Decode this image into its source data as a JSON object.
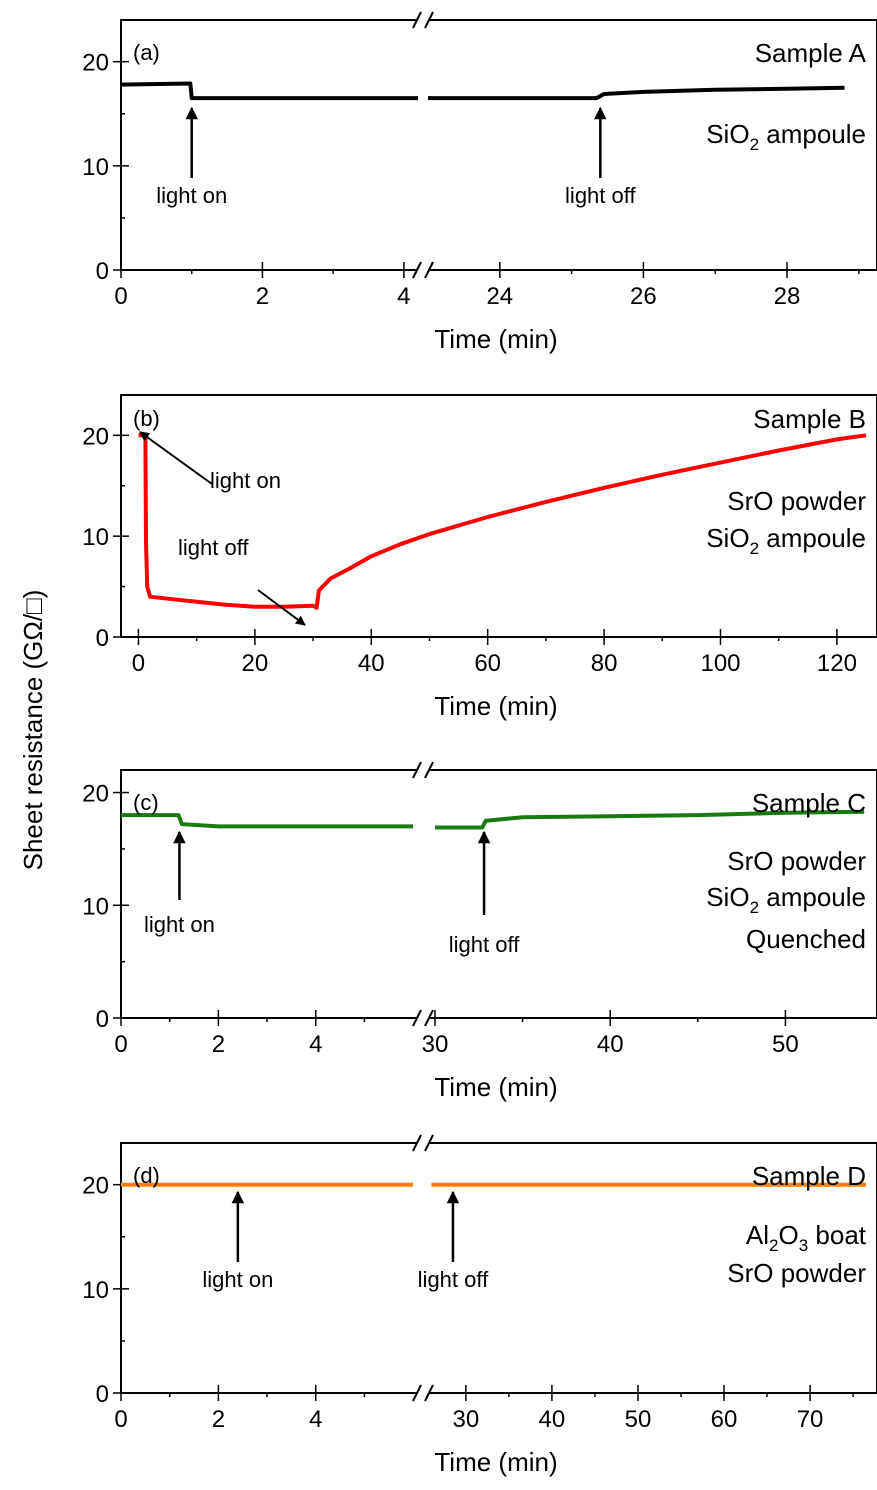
{
  "ylabel": "Sheet resistance (GΩ/□)",
  "chart_data": [
    {
      "type": "line",
      "panel": "(a)",
      "sample": "Sample A",
      "notes": [
        {
          "text": "SiO",
          "sub": "2",
          "rest": " ampoule"
        }
      ],
      "xlabel": "Time (min)",
      "ylim": [
        0,
        24
      ],
      "yticks": [
        "0",
        "10",
        "20"
      ],
      "broken_axis": true,
      "segments": [
        {
          "xlim": [
            0,
            4.2
          ],
          "xticks": [
            0,
            2,
            4
          ]
        },
        {
          "xlim": [
            23,
            29.1
          ],
          "xticks": [
            24,
            26,
            28
          ]
        }
      ],
      "color": "#000000",
      "series": [
        {
          "segment": 0,
          "x": [
            0,
            0.98,
            1.0,
            4.2
          ],
          "y": [
            17.8,
            17.9,
            16.5,
            16.5
          ]
        },
        {
          "segment": 1,
          "x": [
            23,
            25.35,
            25.45,
            26,
            27,
            28,
            28.8
          ],
          "y": [
            16.5,
            16.5,
            16.9,
            17.1,
            17.3,
            17.4,
            17.5
          ]
        }
      ],
      "annotations": [
        {
          "text": "light on",
          "segment": 0,
          "x": 1.0
        },
        {
          "text": "light off",
          "segment": 1,
          "x": 25.4
        }
      ]
    },
    {
      "type": "line",
      "panel": "(b)",
      "sample": "Sample B",
      "notes": [
        {
          "text": "SrO powder"
        },
        {
          "text": "SiO",
          "sub": "2",
          "rest": " ampoule"
        }
      ],
      "xlabel": "Time (min)",
      "ylim": [
        0,
        24
      ],
      "yticks": [
        "0",
        "10",
        "20"
      ],
      "broken_axis": false,
      "segments": [
        {
          "xlim": [
            -3,
            125
          ],
          "xticks": [
            0,
            20,
            40,
            60,
            80,
            100,
            120
          ]
        }
      ],
      "color": "#ff0000",
      "series": [
        {
          "segment": 0,
          "x": [
            0,
            1.2,
            1.3,
            1.5,
            2,
            5,
            10,
            15,
            20,
            25,
            30,
            30.6,
            31,
            33,
            36,
            40,
            45,
            50,
            60,
            70,
            80,
            90,
            100,
            110,
            120,
            125
          ],
          "y": [
            20,
            20,
            9.5,
            5.0,
            4.0,
            3.8,
            3.5,
            3.2,
            3.0,
            3.0,
            3.1,
            2.9,
            4.6,
            5.8,
            6.7,
            8.0,
            9.2,
            10.2,
            11.9,
            13.4,
            14.8,
            16.1,
            17.3,
            18.5,
            19.6,
            20.0
          ]
        }
      ],
      "annotations": [
        {
          "text": "light on",
          "segment": 0,
          "x": 1,
          "y": 20
        },
        {
          "text": "light off",
          "segment": 0,
          "x": 30.5,
          "y": 3.2
        }
      ]
    },
    {
      "type": "line",
      "panel": "(c)",
      "sample": "Sample C",
      "notes": [
        {
          "text": "SrO powder"
        },
        {
          "text": "SiO",
          "sub": "2",
          "rest": " ampoule"
        },
        {
          "text": "Quenched"
        }
      ],
      "xlabel": "Time (min)",
      "ylim": [
        0,
        22
      ],
      "yticks": [
        "0",
        "10",
        "20"
      ],
      "broken_axis": true,
      "segments": [
        {
          "xlim": [
            0,
            6.1
          ],
          "xticks": [
            0,
            2,
            4
          ]
        },
        {
          "xlim": [
            29.6,
            54.6
          ],
          "xticks": [
            30,
            40,
            50
          ]
        }
      ],
      "color": "#1a7a12",
      "series": [
        {
          "segment": 0,
          "x": [
            0,
            1.18,
            1.25,
            2,
            3,
            4,
            5,
            6.0
          ],
          "y": [
            18.0,
            18.0,
            17.2,
            17.0,
            17.0,
            17.0,
            17.0,
            17.0
          ]
        },
        {
          "segment": 1,
          "x": [
            30,
            32.7,
            32.9,
            35,
            40,
            45,
            50,
            54.5
          ],
          "y": [
            16.9,
            16.9,
            17.5,
            17.8,
            17.9,
            18.0,
            18.2,
            18.3
          ]
        }
      ],
      "annotations": [
        {
          "text": "light on",
          "segment": 0,
          "x": 1.2
        },
        {
          "text": "light off",
          "segment": 1,
          "x": 32.8
        }
      ]
    },
    {
      "type": "line",
      "panel": "(d)",
      "sample": "Sample D",
      "notes": [
        {
          "text": "Al",
          "sub": "2",
          "rest": "O",
          "sub2": "3",
          "rest2": " boat"
        },
        {
          "text": "SrO powder"
        }
      ],
      "xlabel": "Time (min)",
      "ylim": [
        0,
        24
      ],
      "yticks": [
        "0",
        "10",
        "20"
      ],
      "broken_axis": true,
      "segments": [
        {
          "xlim": [
            0,
            6.1
          ],
          "xticks": [
            0,
            2,
            4
          ]
        },
        {
          "xlim": [
            25.6,
            76.5
          ],
          "xticks": [
            30,
            40,
            50,
            60,
            70
          ]
        }
      ],
      "color": "#ff8000",
      "series": [
        {
          "segment": 0,
          "x": [
            0,
            6.0
          ],
          "y": [
            20,
            20
          ]
        },
        {
          "segment": 1,
          "x": [
            26,
            76.5
          ],
          "y": [
            20,
            20
          ]
        }
      ],
      "annotations": [
        {
          "text": "light on",
          "segment": 0,
          "x": 2.4
        },
        {
          "text": "light off",
          "segment": 1,
          "x": 28.5
        }
      ]
    }
  ]
}
